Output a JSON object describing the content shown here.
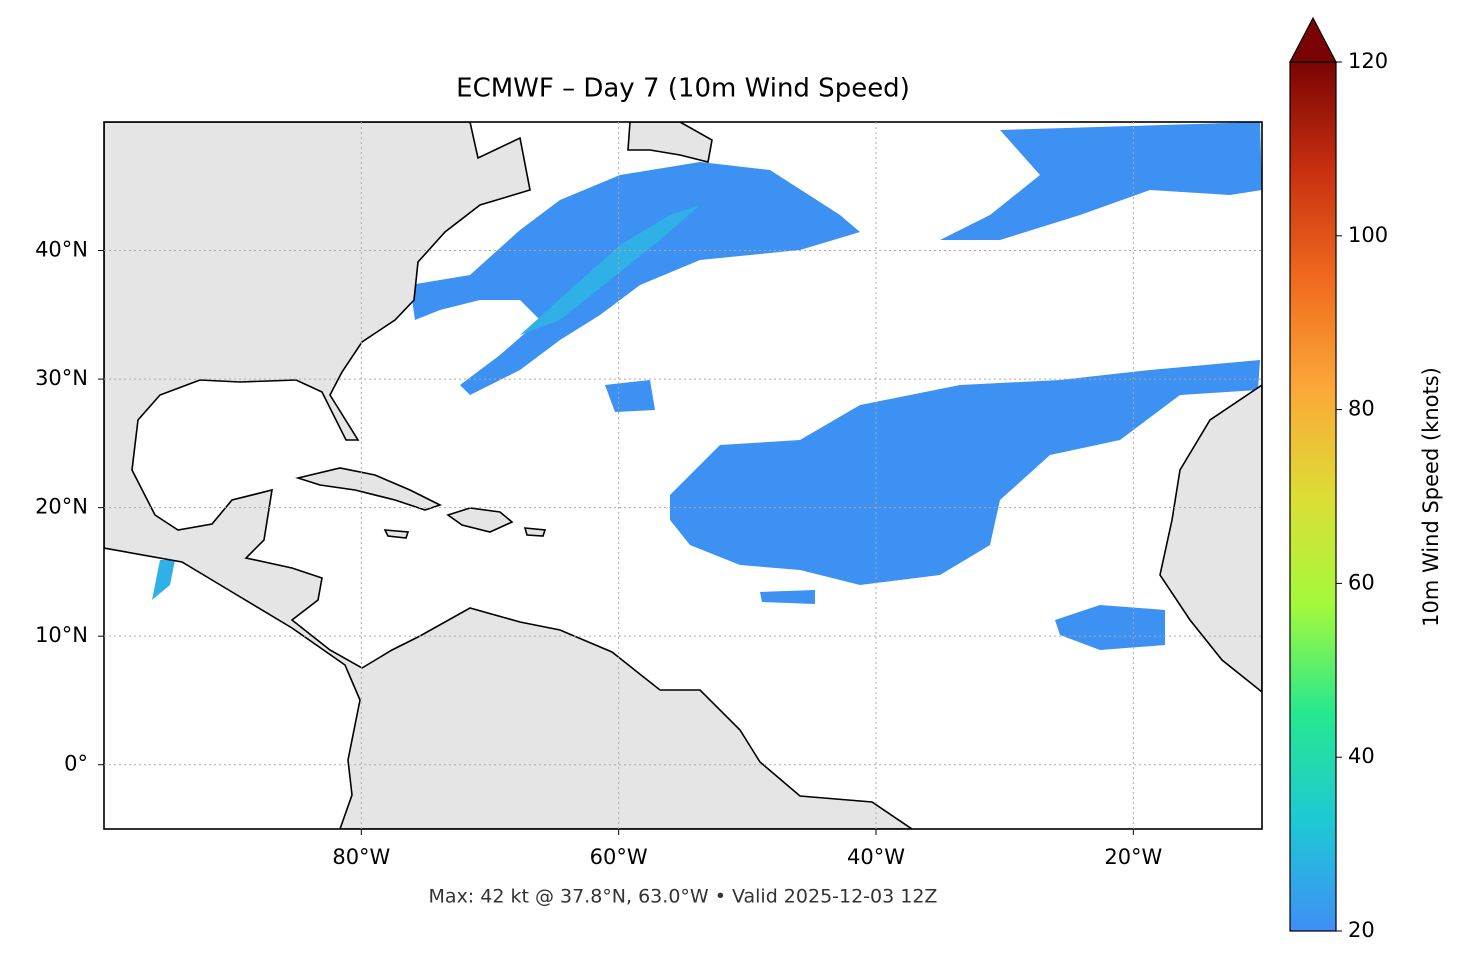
{
  "chart_data": {
    "type": "map",
    "title": "ECMWF – Day 7 (10m Wind Speed)",
    "subtitle": "Max: 42 kt @ 37.8°N, 63.0°W • Valid 2025-12-03 12Z",
    "xlim": [
      -100,
      -10
    ],
    "ylim": [
      -5,
      50
    ],
    "xticks": [
      {
        "value": -80,
        "label": "80°W"
      },
      {
        "value": -60,
        "label": "60°W"
      },
      {
        "value": -40,
        "label": "40°W"
      },
      {
        "value": -20,
        "label": "20°W"
      }
    ],
    "yticks": [
      {
        "value": 0,
        "label": "0°"
      },
      {
        "value": 10,
        "label": "10°N"
      },
      {
        "value": 20,
        "label": "20°N"
      },
      {
        "value": 30,
        "label": "30°N"
      },
      {
        "value": 40,
        "label": "40°N"
      }
    ],
    "grid": true,
    "colorbar": {
      "label": "10m Wind Speed (knots)",
      "lim": [
        20,
        120
      ],
      "ticks": [
        20,
        40,
        60,
        80,
        100,
        120
      ],
      "extend": "max",
      "colors": [
        "#3f8ef5",
        "#1ec8d6",
        "#26e88f",
        "#a3f93a",
        "#dddd35",
        "#fba838",
        "#f06a1e",
        "#c83010",
        "#7a0403"
      ]
    }
  }
}
